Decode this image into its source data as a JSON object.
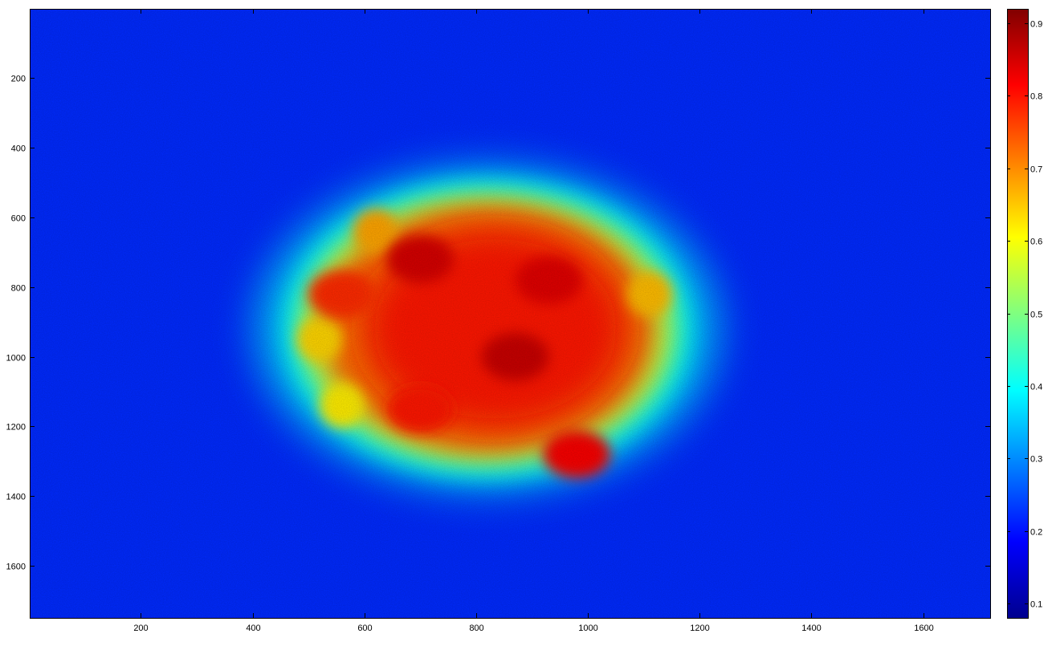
{
  "chart_data": {
    "type": "heatmap",
    "title": "",
    "xlabel": "",
    "ylabel": "",
    "xlim": [
      1,
      1720
    ],
    "ylim": [
      1750,
      1
    ],
    "x_ticks": [
      200,
      400,
      600,
      800,
      1000,
      1200,
      1400,
      1600
    ],
    "y_ticks": [
      200,
      400,
      600,
      800,
      1000,
      1200,
      1400,
      1600
    ],
    "y_reversed": true,
    "grid": false,
    "colormap": "jet",
    "colorbar": {
      "clim": [
        0.08,
        0.92
      ],
      "ticks": [
        0.1,
        0.2,
        0.3,
        0.4,
        0.5,
        0.6,
        0.7,
        0.8,
        0.9
      ],
      "tick_labels": [
        "0.1",
        "0.2",
        "0.3",
        "0.4",
        "0.5",
        "0.6",
        "0.7",
        "0.8",
        "0.9"
      ]
    },
    "background_value": 0.22,
    "region": {
      "description_value_center": 0.8,
      "center": [
        820,
        920
      ],
      "radius_x": 330,
      "radius_y": 390,
      "edge_value": 0.55,
      "halo_value": 0.32
    },
    "hot_spots": [
      {
        "x": 700,
        "y": 720,
        "value": 0.85
      },
      {
        "x": 930,
        "y": 780,
        "value": 0.84
      },
      {
        "x": 870,
        "y": 1000,
        "value": 0.86
      },
      {
        "x": 980,
        "y": 1280,
        "value": 0.82
      },
      {
        "x": 700,
        "y": 1150,
        "value": 0.8
      },
      {
        "x": 560,
        "y": 820,
        "value": 0.78
      }
    ],
    "warm_spots": [
      {
        "x": 620,
        "y": 640,
        "value": 0.68
      },
      {
        "x": 560,
        "y": 1140,
        "value": 0.62
      },
      {
        "x": 1110,
        "y": 820,
        "value": 0.66
      },
      {
        "x": 520,
        "y": 950,
        "value": 0.64
      }
    ]
  }
}
